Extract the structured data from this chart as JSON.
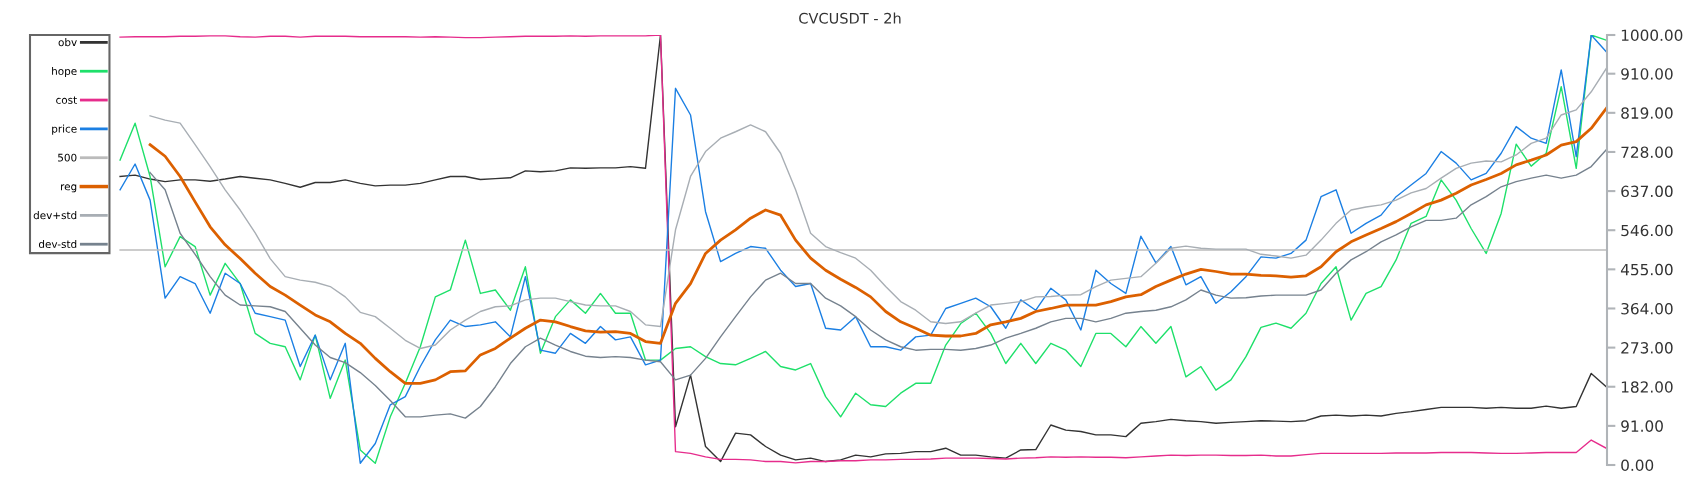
{
  "chart_data": {
    "type": "line",
    "title": "CVCUSDT - 2h",
    "categories": [
      null,
      null,
      null,
      null,
      null,
      null,
      null,
      null,
      null,
      null,
      null,
      null,
      null,
      null,
      null,
      null,
      null,
      null,
      null,
      null,
      null,
      null,
      null,
      null,
      null,
      null,
      null,
      null,
      null,
      null,
      null,
      null,
      null,
      null,
      null,
      null,
      null,
      null,
      null,
      null,
      null,
      null,
      null,
      null,
      null,
      null,
      null,
      null,
      null,
      null,
      null,
      null,
      null,
      null,
      null,
      null,
      null,
      null,
      null,
      null,
      null,
      null,
      null,
      null,
      null,
      null,
      null,
      null,
      null,
      null,
      null,
      null,
      null,
      null,
      null,
      null,
      null,
      null,
      null,
      null,
      null,
      null,
      null,
      null,
      null,
      null,
      null,
      null,
      null,
      null,
      null,
      null,
      null,
      null,
      null,
      null,
      null,
      null,
      null,
      null,
      null,
      null,
      null,
      null,
      null,
      null
    ],
    "ylim": [
      0,
      1000
    ],
    "yticks": [
      {
        "value": 0,
        "label": "0.00"
      },
      {
        "value": 91,
        "label": "91.00"
      },
      {
        "value": 182,
        "label": "182.00"
      },
      {
        "value": 273,
        "label": "273.00"
      },
      {
        "value": 364,
        "label": "364.00"
      },
      {
        "value": 455,
        "label": "455.00"
      },
      {
        "value": 546,
        "label": "546.00"
      },
      {
        "value": 637,
        "label": "637.00"
      },
      {
        "value": 728,
        "label": "728.00"
      },
      {
        "value": 819,
        "label": "819.00"
      },
      {
        "value": 910,
        "label": "910.00"
      },
      {
        "value": 1000,
        "label": "1000.00"
      }
    ],
    "grid": false,
    "legend": "top left",
    "tick_labels": "y",
    "marker": "none",
    "line_style": "solid",
    "series": [
      {
        "name": "obv",
        "color": "#333333",
        "values": [
          null,
          null,
          null,
          null,
          null,
          null,
          671,
          674,
          665,
          659,
          663,
          663,
          660,
          665,
          671,
          667,
          663,
          655,
          646,
          657,
          657,
          663,
          655,
          649,
          651,
          651,
          655,
          663,
          671,
          671,
          664,
          666,
          668,
          684,
          682,
          684,
          691,
          690,
          691,
          691,
          694,
          690,
          1000,
          89,
          209,
          43,
          8,
          74,
          70,
          43,
          23,
          12,
          16,
          8,
          12,
          23,
          19,
          26,
          27,
          31,
          31,
          39,
          23,
          23,
          19,
          16,
          35,
          36,
          93,
          81,
          78,
          70,
          70,
          66,
          97,
          101,
          106,
          103,
          101,
          97,
          99,
          101,
          103,
          102,
          101,
          103,
          114,
          116,
          114,
          116,
          114,
          120,
          124,
          129,
          134,
          134,
          134,
          132,
          134,
          132,
          132,
          137,
          132,
          136,
          213,
          182
        ]
      },
      {
        "name": "hope",
        "color": "#1ee06a",
        "values": [
          null,
          null,
          null,
          null,
          null,
          null,
          709,
          795,
          671,
          461,
          531,
          508,
          395,
          469,
          422,
          306,
          283,
          275,
          198,
          302,
          155,
          244,
          35,
          4,
          112,
          190,
          275,
          391,
          407,
          523,
          399,
          407,
          360,
          461,
          260,
          345,
          384,
          353,
          399,
          353,
          353,
          244,
          244,
          271,
          275,
          252,
          236,
          233,
          248,
          264,
          229,
          221,
          236,
          159,
          112,
          167,
          140,
          136,
          167,
          190,
          190,
          279,
          329,
          353,
          306,
          236,
          283,
          236,
          283,
          267,
          229,
          306,
          306,
          275,
          322,
          283,
          322,
          205,
          229,
          174,
          198,
          252,
          320,
          330,
          318,
          353,
          422,
          461,
          337,
          399,
          415,
          477,
          562,
          578,
          663,
          616,
          550,
          492,
          585,
          746,
          695,
          725,
          880,
          690,
          1000,
          988
        ]
      },
      {
        "name": "cost",
        "color": "#e62c8c",
        "values": [
          null,
          null,
          null,
          null,
          null,
          null,
          995,
          996,
          996,
          996,
          997,
          997,
          998,
          998,
          996,
          995,
          997,
          997,
          995,
          997,
          997,
          997,
          996,
          996,
          996,
          996,
          995,
          996,
          995,
          994,
          994,
          995,
          996,
          997,
          997,
          997,
          998,
          997,
          998,
          998,
          998,
          998,
          1000,
          31,
          27,
          19,
          13,
          13,
          12,
          8,
          8,
          5,
          8,
          8,
          10,
          10,
          12,
          12,
          13,
          13,
          14,
          16,
          16,
          16,
          15,
          14,
          16,
          17,
          19,
          18,
          19,
          18,
          18,
          17,
          19,
          21,
          23,
          22,
          23,
          23,
          22,
          22,
          23,
          21,
          21,
          24,
          27,
          27,
          27,
          27,
          27,
          28,
          28,
          28,
          29,
          29,
          29,
          28,
          27,
          27,
          28,
          29,
          29,
          29,
          58,
          39
        ]
      },
      {
        "name": "price",
        "color": "#1b7fe3",
        "values": [
          null,
          null,
          null,
          null,
          null,
          null,
          640,
          700,
          616,
          388,
          438,
          422,
          353,
          446,
          422,
          353,
          345,
          337,
          229,
          302,
          198,
          283,
          4,
          50,
          140,
          159,
          229,
          291,
          337,
          322,
          326,
          333,
          298,
          438,
          267,
          260,
          306,
          283,
          322,
          291,
          298,
          233,
          244,
          876,
          814,
          589,
          473,
          492,
          508,
          504,
          453,
          415,
          422,
          318,
          314,
          345,
          275,
          275,
          267,
          298,
          302,
          364,
          376,
          388,
          368,
          318,
          384,
          360,
          411,
          384,
          314,
          453,
          422,
          399,
          532,
          470,
          508,
          419,
          438,
          376,
          403,
          438,
          484,
          481,
          492,
          523,
          624,
          640,
          539,
          562,
          581,
          624,
          651,
          678,
          729,
          702,
          663,
          678,
          725,
          787,
          760,
          748,
          919,
          717,
          1000,
          961
        ]
      },
      {
        "name": "500",
        "color": "#bbbbbb",
        "values": [
          null,
          null,
          null,
          null,
          null,
          null,
          500,
          500,
          500,
          500,
          500,
          500,
          500,
          500,
          500,
          500,
          500,
          500,
          500,
          500,
          500,
          500,
          500,
          500,
          500,
          500,
          500,
          500,
          500,
          500,
          500,
          500,
          500,
          500,
          500,
          500,
          500,
          500,
          500,
          500,
          500,
          500,
          500,
          500,
          500,
          500,
          500,
          500,
          500,
          500,
          500,
          500,
          500,
          500,
          500,
          500,
          500,
          500,
          500,
          500,
          500,
          500,
          500,
          500,
          500,
          500,
          500,
          500,
          500,
          500,
          500,
          500,
          500,
          500,
          500,
          500,
          500,
          500,
          500,
          500,
          500,
          500,
          500,
          500,
          500,
          500,
          500,
          500,
          500,
          500,
          500,
          500,
          500,
          500,
          500,
          500,
          500,
          500,
          500,
          500,
          500,
          500,
          500,
          500,
          500,
          500
        ]
      },
      {
        "name": "reg",
        "color": "#dc6000",
        "values": [
          null,
          null,
          null,
          null,
          null,
          null,
          null,
          null,
          745,
          718,
          671,
          612,
          554,
          512,
          480,
          446,
          415,
          395,
          372,
          349,
          333,
          306,
          283,
          248,
          217,
          190,
          190,
          198,
          217,
          219,
          256,
          271,
          295,
          318,
          337,
          333,
          322,
          312,
          309,
          310,
          306,
          287,
          283,
          376,
          422,
          492,
          523,
          547,
          574,
          593,
          581,
          523,
          481,
          453,
          432,
          413,
          391,
          357,
          333,
          318,
          302,
          300,
          300,
          306,
          326,
          333,
          341,
          357,
          364,
          372,
          372,
          372,
          380,
          391,
          396,
          415,
          430,
          444,
          455,
          450,
          444,
          444,
          441,
          440,
          437,
          440,
          461,
          496,
          519,
          535,
          550,
          566,
          585,
          605,
          616,
          632,
          651,
          664,
          678,
          698,
          709,
          721,
          744,
          752,
          783,
          829
        ]
      },
      {
        "name": "dev+std",
        "color": "#a8aeb4",
        "values": [
          null,
          null,
          null,
          null,
          null,
          null,
          null,
          null,
          812,
          802,
          795,
          745,
          694,
          640,
          593,
          540,
          480,
          438,
          430,
          425,
          415,
          391,
          355,
          345,
          318,
          290,
          271,
          279,
          314,
          337,
          357,
          368,
          370,
          384,
          388,
          388,
          380,
          372,
          370,
          370,
          357,
          326,
          322,
          547,
          671,
          729,
          760,
          775,
          791,
          775,
          725,
          640,
          539,
          508,
          494,
          481,
          453,
          415,
          380,
          360,
          333,
          329,
          333,
          353,
          372,
          376,
          380,
          391,
          392,
          395,
          396,
          415,
          430,
          434,
          438,
          469,
          504,
          509,
          504,
          502,
          502,
          502,
          490,
          486,
          481,
          488,
          523,
          562,
          593,
          600,
          605,
          616,
          633,
          643,
          667,
          690,
          702,
          707,
          705,
          721,
          748,
          760,
          814,
          826,
          868,
          922
        ]
      },
      {
        "name": "dev-std",
        "color": "#76828e",
        "values": [
          null,
          null,
          null,
          null,
          null,
          null,
          null,
          null,
          680,
          640,
          539,
          490,
          438,
          395,
          372,
          370,
          368,
          357,
          318,
          279,
          250,
          238,
          215,
          185,
          150,
          112,
          112,
          116,
          119,
          109,
          136,
          182,
          236,
          275,
          295,
          279,
          264,
          253,
          250,
          252,
          250,
          244,
          240,
          198,
          209,
          248,
          298,
          345,
          391,
          430,
          446,
          422,
          422,
          388,
          370,
          345,
          314,
          291,
          275,
          267,
          269,
          269,
          267,
          271,
          279,
          295,
          306,
          318,
          333,
          341,
          341,
          333,
          341,
          353,
          357,
          360,
          368,
          384,
          407,
          395,
          388,
          389,
          393,
          395,
          395,
          395,
          407,
          446,
          477,
          496,
          519,
          535,
          554,
          569,
          569,
          574,
          605,
          624,
          647,
          659,
          667,
          674,
          667,
          674,
          694,
          733
        ]
      }
    ]
  }
}
